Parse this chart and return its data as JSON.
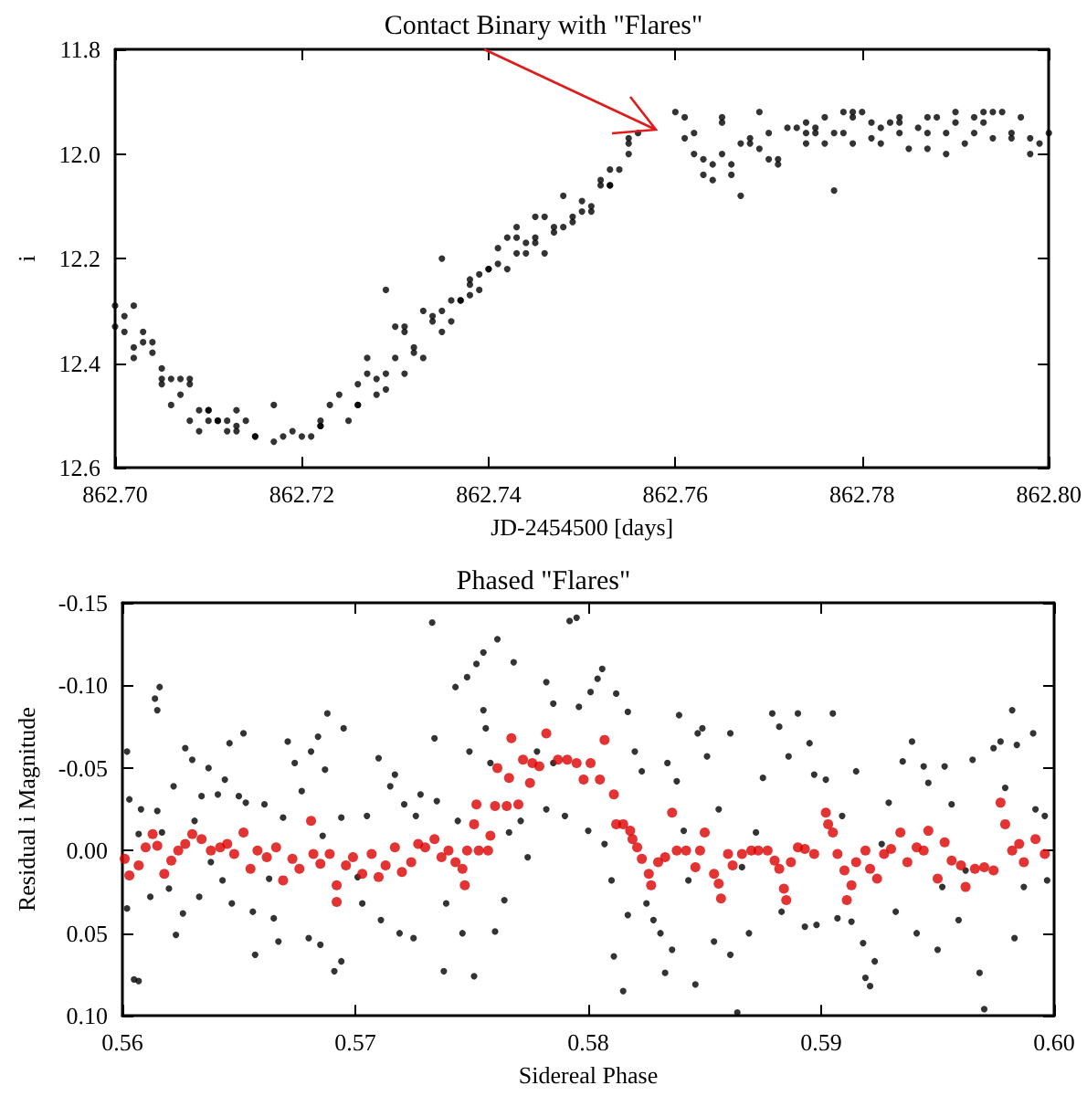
{
  "chart_data": [
    {
      "type": "scatter",
      "title": "Contact Binary with \"Flares\"",
      "xlabel": "JD-2454500 [days]",
      "ylabel": "i",
      "color": "#000000",
      "marker": "circle",
      "xlim": [
        862.7,
        862.8
      ],
      "ylim": [
        12.6,
        11.8
      ],
      "xticks": [
        {
          "value": 862.7,
          "label": "862.70"
        },
        {
          "value": 862.72,
          "label": "862.72"
        },
        {
          "value": 862.74,
          "label": "862.74"
        },
        {
          "value": 862.76,
          "label": "862.76"
        },
        {
          "value": 862.78,
          "label": "862.78"
        },
        {
          "value": 862.8,
          "label": "862.80"
        }
      ],
      "yticks": [
        11.8,
        {
          "value": 12,
          "label": "12.0"
        },
        12.2,
        12.4,
        12.6
      ],
      "x": [
        862.7,
        862.7,
        862.701,
        862.701,
        862.702,
        862.702,
        862.702,
        862.703,
        862.703,
        862.704,
        862.704,
        862.705,
        862.705,
        862.705,
        862.706,
        862.706,
        862.707,
        862.707,
        862.708,
        862.708,
        862.708,
        862.709,
        862.709,
        862.71,
        862.71,
        862.71,
        862.711,
        862.711,
        862.712,
        862.712,
        862.713,
        862.713,
        862.713,
        862.714,
        862.715,
        862.715,
        862.717,
        862.717,
        862.718,
        862.719,
        862.72,
        862.721,
        862.722,
        862.722,
        862.722,
        862.723,
        862.724,
        862.725,
        862.726,
        862.726,
        862.726,
        862.727,
        862.727,
        862.728,
        862.728,
        862.729,
        862.729,
        862.729,
        862.73,
        862.73,
        862.731,
        862.731,
        862.731,
        862.732,
        862.732,
        862.733,
        862.733,
        862.734,
        862.734,
        862.735,
        862.735,
        862.735,
        862.736,
        862.736,
        862.737,
        862.737,
        862.738,
        862.738,
        862.738,
        862.739,
        862.739,
        862.74,
        862.74,
        862.741,
        862.741,
        862.742,
        862.742,
        862.743,
        862.743,
        862.743,
        862.744,
        862.744,
        862.745,
        862.745,
        862.745,
        862.746,
        862.746,
        862.747,
        862.747,
        862.748,
        862.748,
        862.749,
        862.749,
        862.75,
        862.75,
        862.751,
        862.751,
        862.752,
        862.752,
        862.753,
        862.753,
        862.753,
        862.754,
        862.755,
        862.755,
        862.755,
        862.756,
        862.76,
        862.761,
        862.761,
        862.762,
        862.762,
        862.763,
        862.763,
        862.764,
        862.764,
        862.765,
        862.765,
        862.765,
        862.766,
        862.766,
        862.767,
        862.767,
        862.768,
        862.768,
        862.769,
        862.769,
        862.77,
        862.77,
        862.771,
        862.771,
        862.772,
        862.773,
        862.774,
        862.774,
        862.774,
        862.775,
        862.775,
        862.776,
        862.776,
        862.777,
        862.777,
        862.778,
        862.778,
        862.779,
        862.779,
        862.779,
        862.78,
        862.781,
        862.781,
        862.782,
        862.782,
        862.783,
        862.784,
        862.784,
        862.784,
        862.785,
        862.786,
        862.787,
        862.787,
        862.787,
        862.788,
        862.789,
        862.789,
        862.79,
        862.79,
        862.791,
        862.792,
        862.792,
        862.793,
        862.793,
        862.794,
        862.794,
        862.795,
        862.796,
        862.796,
        862.797,
        862.798,
        862.798,
        862.799,
        862.8
      ],
      "values": [
        12.29,
        12.33,
        12.34,
        12.31,
        12.29,
        12.37,
        12.39,
        12.36,
        12.34,
        12.36,
        12.38,
        12.43,
        12.41,
        12.44,
        12.43,
        12.48,
        12.46,
        12.43,
        12.43,
        12.44,
        12.51,
        12.49,
        12.53,
        12.51,
        12.49,
        12.49,
        12.51,
        12.51,
        12.53,
        12.51,
        12.52,
        12.49,
        12.53,
        12.51,
        12.54,
        12.54,
        12.55,
        12.48,
        12.54,
        12.53,
        12.54,
        12.54,
        12.52,
        12.51,
        12.52,
        12.48,
        12.46,
        12.51,
        12.48,
        12.48,
        12.44,
        12.42,
        12.39,
        12.43,
        12.46,
        12.26,
        12.45,
        12.42,
        12.39,
        12.33,
        12.42,
        12.33,
        12.34,
        12.37,
        12.38,
        12.39,
        12.3,
        12.31,
        12.32,
        12.34,
        12.2,
        12.3,
        12.32,
        12.28,
        12.28,
        12.28,
        12.24,
        12.25,
        12.27,
        12.23,
        12.26,
        12.22,
        12.22,
        12.21,
        12.18,
        12.22,
        12.16,
        12.16,
        12.14,
        12.19,
        12.17,
        12.19,
        12.16,
        12.17,
        12.12,
        12.19,
        12.12,
        12.14,
        12.15,
        12.14,
        12.08,
        12.12,
        12.13,
        12.11,
        12.09,
        12.11,
        12.1,
        12.06,
        12.05,
        12.03,
        12.06,
        12.06,
        12.03,
        12.0,
        11.98,
        11.97,
        11.96,
        11.92,
        11.93,
        11.97,
        11.96,
        12.0,
        12.04,
        12.01,
        12.02,
        12.05,
        11.93,
        11.94,
        12.0,
        12.02,
        12.04,
        12.08,
        11.98,
        11.98,
        11.97,
        11.99,
        11.92,
        11.96,
        12.01,
        12.02,
        12.01,
        11.95,
        11.95,
        11.98,
        11.96,
        11.94,
        11.96,
        11.95,
        11.93,
        11.98,
        12.07,
        11.96,
        11.96,
        11.92,
        11.98,
        11.93,
        11.92,
        11.92,
        11.97,
        11.94,
        11.95,
        11.98,
        11.94,
        11.93,
        11.96,
        11.94,
        11.99,
        11.95,
        11.93,
        11.96,
        11.99,
        11.93,
        11.96,
        12.0,
        11.94,
        11.92,
        11.98,
        11.93,
        11.96,
        11.94,
        11.92,
        11.97,
        11.92,
        11.92,
        11.96,
        11.97,
        11.93,
        11.97,
        12.0,
        11.98,
        11.96
      ]
    },
    {
      "type": "scatter",
      "title": "Phased \"Flares\"",
      "xlabel": "Sidereal Phase",
      "ylabel": "Residual i Magnitude",
      "marker": "circle",
      "xlim": [
        0.56,
        0.6
      ],
      "ylim": [
        0.1,
        -0.15
      ],
      "xticks": [
        0.56,
        0.57,
        0.58,
        0.59,
        {
          "value": 0.6,
          "label": "0.60"
        }
      ],
      "yticks": [
        -0.15,
        {
          "value": -0.1,
          "label": "-0.10"
        },
        -0.05,
        {
          "value": 0,
          "label": "0.00"
        },
        0.05,
        {
          "value": 0.1,
          "label": "0.10"
        }
      ],
      "series": [
        {
          "color": "#000000",
          "x": [
            0.5602,
            0.5603,
            0.5602,
            0.5605,
            0.5607,
            0.5607,
            0.5608,
            0.5612,
            0.5614,
            0.5615,
            0.5616,
            0.5615,
            0.5617,
            0.562,
            0.5622,
            0.5623,
            0.5626,
            0.5627,
            0.563,
            0.5631,
            0.5633,
            0.5634,
            0.5637,
            0.5638,
            0.5641,
            0.5643,
            0.5644,
            0.5646,
            0.5647,
            0.565,
            0.5652,
            0.5653,
            0.5656,
            0.5657,
            0.5661,
            0.5663,
            0.5665,
            0.5667,
            0.5669,
            0.5671,
            0.5674,
            0.5677,
            0.568,
            0.5681,
            0.5684,
            0.5685,
            0.5686,
            0.5687,
            0.5688,
            0.5691,
            0.5694,
            0.5695,
            0.5694,
            0.5701,
            0.5703,
            0.5705,
            0.571,
            0.5711,
            0.5715,
            0.5717,
            0.5719,
            0.5721,
            0.5725,
            0.5726,
            0.5728,
            0.5733,
            0.5734,
            0.5735,
            0.5738,
            0.5739,
            0.5743,
            0.5744,
            0.5746,
            0.5748,
            0.5749,
            0.5751,
            0.5752,
            0.5755,
            0.5755,
            0.5756,
            0.5758,
            0.5761,
            0.576,
            0.5764,
            0.5766,
            0.5768,
            0.5771,
            0.5774,
            0.5778,
            0.5782,
            0.5785,
            0.5782,
            0.5785,
            0.579,
            0.5792,
            0.5795,
            0.5796,
            0.58,
            0.5801,
            0.5804,
            0.5806,
            0.5807,
            0.581,
            0.5811,
            0.5812,
            0.5815,
            0.5817,
            0.5817,
            0.582,
            0.5823,
            0.5825,
            0.5828,
            0.5831,
            0.5833,
            0.5834,
            0.5836,
            0.5838,
            0.5839,
            0.5841,
            0.5843,
            0.5846,
            0.5847,
            0.5849,
            0.5851,
            0.5854,
            0.5856,
            0.5857,
            0.5861,
            0.5861,
            0.5864,
            0.5866,
            0.5869,
            0.5872,
            0.5875,
            0.5879,
            0.5882,
            0.5883,
            0.5886,
            0.589,
            0.5893,
            0.5895,
            0.5897,
            0.5898,
            0.5902,
            0.5905,
            0.5907,
            0.5909,
            0.5913,
            0.5915,
            0.5918,
            0.5919,
            0.5921,
            0.5923,
            0.5926,
            0.5929,
            0.5932,
            0.5935,
            0.5939,
            0.5941,
            0.5944,
            0.5946,
            0.595,
            0.5952,
            0.5953,
            0.5956,
            0.5959,
            0.5962,
            0.5965,
            0.5968,
            0.597,
            0.5974,
            0.5977,
            0.5979,
            0.5982,
            0.5983,
            0.5984,
            0.5987,
            0.5991,
            0.5992,
            0.5996,
            0.5997
          ],
          "values": [
            -0.06,
            -0.031,
            0.035,
            0.078,
            0.079,
            -0.01,
            -0.025,
            0.028,
            -0.092,
            -0.085,
            -0.099,
            -0.024,
            -0.011,
            0.023,
            -0.039,
            0.051,
            0.038,
            -0.062,
            -0.055,
            -0.018,
            0.028,
            -0.033,
            -0.05,
            0.007,
            -0.034,
            0.018,
            -0.043,
            -0.065,
            0.032,
            -0.033,
            -0.071,
            -0.029,
            0.037,
            0.063,
            -0.028,
            0.017,
            0.041,
            0.055,
            -0.02,
            -0.066,
            -0.053,
            -0.036,
            0.053,
            -0.06,
            -0.069,
            0.057,
            -0.009,
            -0.049,
            -0.083,
            0.073,
            0.067,
            -0.074,
            -0.02,
            0.016,
            0.032,
            -0.021,
            -0.056,
            0.042,
            -0.039,
            -0.046,
            0.05,
            -0.028,
            0.053,
            -0.021,
            -0.034,
            -0.138,
            -0.068,
            -0.03,
            0.073,
            0.032,
            -0.099,
            -0.018,
            0.05,
            -0.105,
            -0.06,
            0.076,
            -0.113,
            -0.12,
            -0.085,
            -0.074,
            -0.053,
            -0.128,
            0.049,
            0.03,
            -0.011,
            -0.114,
            -0.018,
            0.004,
            -0.06,
            -0.102,
            -0.089,
            -0.025,
            -0.053,
            -0.021,
            -0.139,
            -0.141,
            -0.087,
            -0.012,
            -0.096,
            -0.104,
            -0.11,
            -0.004,
            0.018,
            0.064,
            -0.095,
            0.085,
            -0.084,
            0.039,
            -0.06,
            -0.048,
            0.032,
            0.042,
            0.05,
            0.074,
            -0.053,
            0.06,
            -0.042,
            -0.082,
            -0.012,
            0.018,
            0.081,
            -0.071,
            -0.074,
            -0.057,
            0.055,
            -0.025,
            null,
            -0.071,
            0.063,
            0.098,
            0.01,
            0.05,
            -0.011,
            -0.044,
            -0.083,
            -0.075,
            0.037,
            -0.057,
            -0.083,
            0.046,
            -0.065,
            -0.046,
            0.045,
            -0.043,
            -0.083,
            0.041,
            -0.021,
            0.043,
            -0.048,
            0.056,
            0.077,
            0.082,
            0.067,
            -0.004,
            -0.029,
            0.037,
            -0.054,
            -0.066,
            0.05,
            -0.051,
            -0.041,
            0.06,
            0.022,
            -0.051,
            -0.028,
            0.042,
            0.012,
            -0.055,
            0.074,
            0.096,
            -0.062,
            -0.066,
            -0.038,
            -0.085,
            0.053,
            -0.064,
            0.022,
            -0.071,
            -0.025,
            -0.021,
            0.018
          ]
        },
        {
          "color": "#dd0000",
          "x": [
            0.5601,
            0.5603,
            0.5607,
            0.561,
            0.5613,
            0.5615,
            0.5618,
            0.5621,
            0.5624,
            0.5627,
            0.563,
            0.5634,
            0.5638,
            0.5642,
            0.5645,
            0.5648,
            0.5652,
            0.5655,
            0.5658,
            0.5662,
            0.5666,
            0.5669,
            0.5673,
            0.5676,
            0.5681,
            0.5682,
            0.5685,
            0.5689,
            0.5692,
            0.5692,
            0.5696,
            0.5699,
            0.5703,
            0.5707,
            0.571,
            0.5713,
            0.5717,
            0.572,
            0.5724,
            0.5727,
            0.573,
            0.5734,
            0.5737,
            0.574,
            0.5743,
            0.5746,
            0.5747,
            0.5748,
            0.5751,
            0.5752,
            0.5753,
            0.5757,
            0.5758,
            0.576,
            0.5761,
            0.5765,
            0.5766,
            0.5767,
            0.577,
            0.5772,
            0.5775,
            0.5776,
            0.5779,
            0.5782,
            0.5787,
            0.5791,
            0.5795,
            0.5798,
            0.5801,
            0.5805,
            0.5807,
            0.5811,
            0.5812,
            0.5815,
            0.5818,
            0.5819,
            0.5821,
            0.5823,
            0.5826,
            0.5827,
            0.583,
            0.5833,
            0.5836,
            0.5838,
            0.5842,
            0.5846,
            0.5848,
            0.585,
            0.5854,
            0.5856,
            0.5857,
            0.586,
            0.5862,
            0.5866,
            0.587,
            0.5873,
            0.5877,
            0.588,
            0.5882,
            0.5884,
            0.5885,
            0.5887,
            0.589,
            0.5893,
            0.5897,
            0.5902,
            0.5903,
            0.5905,
            0.5907,
            0.591,
            0.5911,
            0.5913,
            0.5915,
            0.5919,
            0.5921,
            0.5924,
            0.5927,
            0.593,
            0.5934,
            0.5937,
            0.5941,
            0.5944,
            0.5946,
            0.595,
            0.5953,
            0.5956,
            0.596,
            0.5962,
            0.5966,
            0.597,
            0.5974,
            0.5977,
            0.5979,
            0.5982,
            0.5985,
            0.5987,
            0.5992,
            0.5996
          ],
          "values": [
            0.005,
            0.015,
            0.009,
            -0.002,
            -0.01,
            -0.003,
            0.014,
            0.006,
            0.0,
            -0.004,
            -0.01,
            -0.007,
            0.0,
            -0.002,
            -0.004,
            0.002,
            -0.011,
            0.011,
            0.0,
            0.004,
            -0.002,
            0.018,
            0.005,
            0.011,
            -0.018,
            0.002,
            0.008,
            0.002,
            0.021,
            0.031,
            0.009,
            0.004,
            0.014,
            0.002,
            0.016,
            0.009,
            -0.002,
            0.013,
            0.007,
            -0.004,
            -0.002,
            -0.007,
            0.004,
            0.0,
            0.007,
            0.011,
            0.021,
            0.0,
            -0.016,
            -0.028,
            0.0,
            0.0,
            -0.009,
            -0.027,
            -0.05,
            -0.027,
            -0.044,
            -0.068,
            -0.028,
            -0.055,
            -0.041,
            -0.053,
            -0.051,
            -0.071,
            -0.055,
            -0.055,
            -0.053,
            -0.043,
            -0.053,
            -0.043,
            -0.067,
            -0.034,
            -0.016,
            -0.016,
            -0.012,
            -0.007,
            -0.002,
            0.005,
            0.014,
            0.021,
            0.007,
            0.004,
            -0.023,
            0.0,
            0.0,
            0.01,
            0.0,
            -0.011,
            0.014,
            0.02,
            0.029,
            0.002,
            0.009,
            0.002,
            0.0,
            0.0,
            0.0,
            0.006,
            0.011,
            0.023,
            0.03,
            0.007,
            -0.002,
            -0.001,
            0.002,
            -0.023,
            -0.016,
            -0.011,
            0.002,
            0.012,
            0.03,
            0.021,
            0.007,
            0.0,
            0.011,
            0.017,
            0.002,
            -0.001,
            -0.011,
            0.007,
            -0.002,
            0.0,
            -0.012,
            0.017,
            -0.005,
            0.006,
            0.009,
            0.022,
            0.011,
            0.01,
            0.012,
            -0.029,
            -0.016,
            0.0,
            -0.004,
            0.007,
            -0.007,
            0.002
          ]
        }
      ]
    }
  ]
}
